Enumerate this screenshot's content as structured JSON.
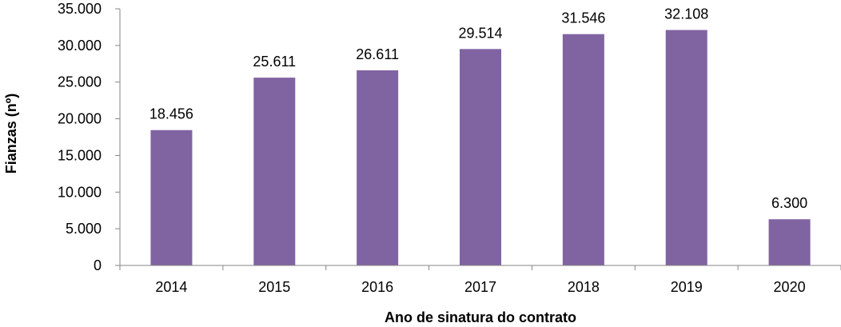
{
  "chart_data": {
    "type": "bar",
    "categories": [
      "2014",
      "2015",
      "2016",
      "2017",
      "2018",
      "2019",
      "2020"
    ],
    "values": [
      18456,
      25611,
      26611,
      29514,
      31546,
      32108,
      6300
    ],
    "data_labels": [
      "18.456",
      "25.611",
      "26.611",
      "29.514",
      "31.546",
      "32.108",
      "6.300"
    ],
    "xlabel": "Ano de sinatura do contrato",
    "ylabel": "Fianzas (nº)",
    "ylim": [
      0,
      35000
    ],
    "yticks": [
      0,
      5000,
      10000,
      15000,
      20000,
      25000,
      30000,
      35000
    ],
    "ytick_labels": [
      "0",
      "5.000",
      "10.000",
      "15.000",
      "20.000",
      "25.000",
      "30.000",
      "35.000"
    ],
    "grid": false,
    "legend": "none",
    "bar_color": "#8064a2",
    "axis_color": "#868686"
  }
}
